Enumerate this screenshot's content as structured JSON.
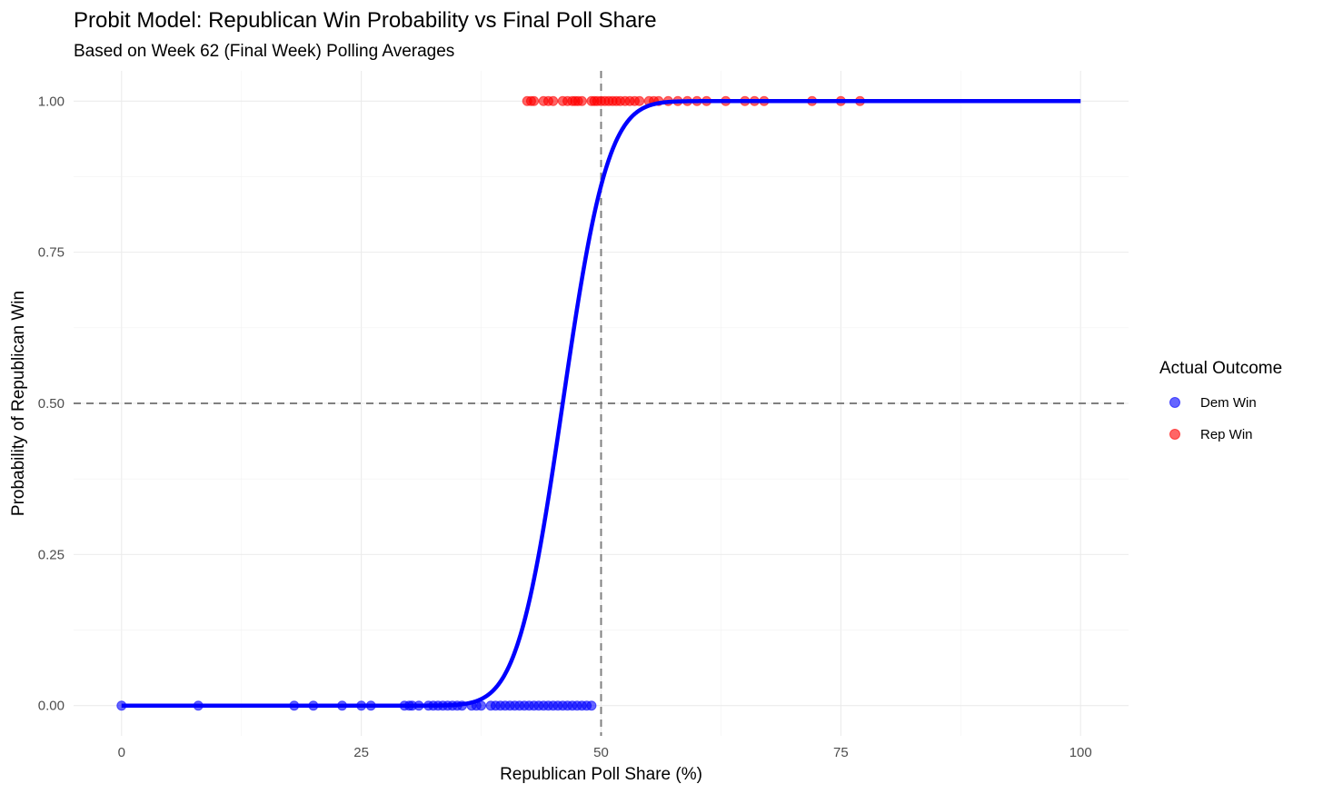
{
  "chart_data": {
    "type": "scatter",
    "title": "Probit Model: Republican Win Probability vs Final Poll Share",
    "subtitle": "Based on Week 62 (Final Week) Polling Averages",
    "xlabel": "Republican Poll Share (%)",
    "ylabel": "Probability of Republican Win",
    "xlim": [
      -5,
      105
    ],
    "ylim": [
      -0.05,
      1.05
    ],
    "x_ticks": [
      "0",
      "25",
      "50",
      "75",
      "100"
    ],
    "y_ticks": [
      "0.00",
      "0.25",
      "0.50",
      "0.75",
      "1.00"
    ],
    "grid": true,
    "legend": {
      "title": "Actual Outcome",
      "placement": "right"
    },
    "reference_lines": {
      "x": 50,
      "y": 0.5
    },
    "series": [
      {
        "name": "Dem Win",
        "color": "#0000ff",
        "y": 0,
        "x": [
          0,
          8,
          18,
          20,
          23,
          25,
          26,
          29.5,
          30,
          30.3,
          31,
          32,
          32.5,
          33,
          33.5,
          34,
          34.5,
          35,
          35.5,
          36.5,
          37,
          37.5,
          38.5,
          39,
          39.5,
          40,
          40.5,
          41,
          41.5,
          42,
          42.5,
          43,
          43.5,
          44,
          44.5,
          45,
          45.5,
          46,
          46.5,
          47,
          47.5,
          48,
          48.5,
          49
        ]
      },
      {
        "name": "Rep Win",
        "color": "#ff0000",
        "y": 1,
        "x": [
          42.3,
          42.7,
          43,
          44,
          44.5,
          45,
          46,
          46.5,
          47,
          47.3,
          47.6,
          48,
          49,
          49.3,
          49.6,
          50,
          50.4,
          50.8,
          51.2,
          51.6,
          52,
          52.5,
          53,
          53.5,
          54,
          55,
          55.5,
          56,
          57,
          58,
          59,
          60,
          61,
          63,
          65,
          66,
          67,
          72,
          75,
          77
        ]
      }
    ],
    "fit_curve": {
      "type": "probit",
      "color": "#0000ff",
      "mean": 46,
      "sd": 3.7,
      "x_range": [
        0,
        100
      ]
    }
  }
}
